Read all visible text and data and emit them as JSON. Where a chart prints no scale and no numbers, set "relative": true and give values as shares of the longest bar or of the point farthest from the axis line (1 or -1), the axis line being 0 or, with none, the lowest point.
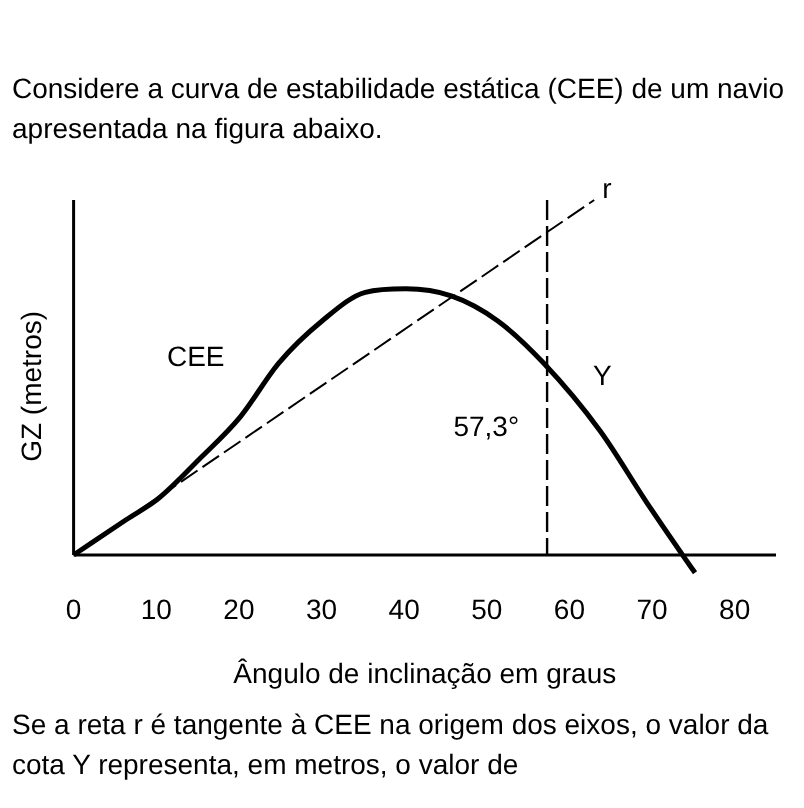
{
  "chart_data": {
    "type": "line",
    "title": "Considere a curva de estabilidade estática (CEE) de um navio apresentada na figura abaixo.",
    "xlabel": "Ângulo de inclinação em graus",
    "ylabel": "GZ (metros)",
    "relative": true,
    "xlim": [
      0,
      85
    ],
    "xticks": [
      0,
      10,
      20,
      30,
      40,
      50,
      60,
      70,
      80
    ],
    "grid": false,
    "legend": false,
    "marker": "none",
    "series": [
      {
        "name": "CEE",
        "color": "#000000",
        "x": [
          0,
          6.4,
          10.3,
          15.2,
          20.2,
          24.8,
          30.1,
          35.3,
          40.2,
          45.7,
          51.3,
          56.9,
          63.7,
          69.3,
          73.7,
          75.2
        ],
        "values": [
          0,
          0.1,
          0.16,
          0.27,
          0.39,
          0.54,
          0.66,
          0.74,
          0.75,
          0.73,
          0.66,
          0.54,
          0.35,
          0.15,
          0,
          -0.05
        ]
      },
      {
        "name": "r",
        "color": "#000000",
        "line_style": "dashed",
        "x": [
          0,
          63
        ],
        "values": [
          0,
          1
        ]
      }
    ],
    "ref_lines": [
      {
        "axis": "x",
        "value": 57.3,
        "label": "57,3°",
        "line_style": "dashed",
        "color": "#000000"
      }
    ],
    "annotations": [
      {
        "text": "Y",
        "x": 64,
        "y": 0.5
      },
      "Se a reta r é tangente à CEE na origem dos eixos, o valor da cota Y representa, em metros, o valor de"
    ]
  }
}
